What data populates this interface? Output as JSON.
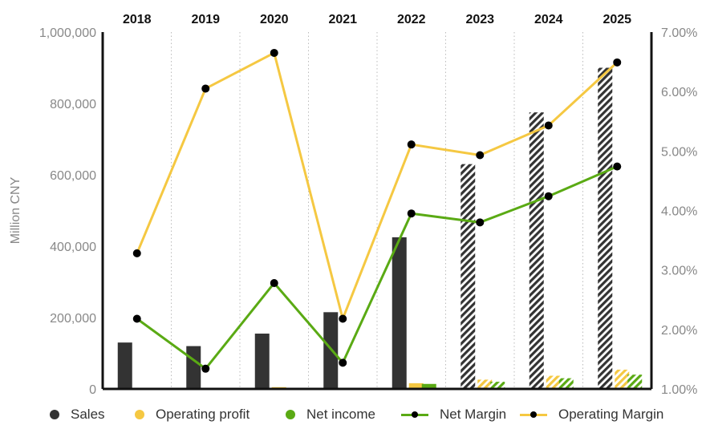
{
  "chart_data": {
    "type": "bar",
    "categories": [
      "2018",
      "2019",
      "2020",
      "2021",
      "2022",
      "2023",
      "2024",
      "2025"
    ],
    "forecast_from": "2023",
    "xlabel": "",
    "ylabel": "Million CNY",
    "ylim": [
      0,
      1000000
    ],
    "y2lim": [
      0.01,
      0.07
    ],
    "y_ticks": [
      "0",
      "200,000",
      "400,000",
      "600,000",
      "800,000",
      "1,000,000"
    ],
    "y2_ticks": [
      "1.00%",
      "2.00%",
      "3.00%",
      "4.00%",
      "5.00%",
      "6.00%",
      "7.00%"
    ],
    "series": [
      {
        "name": "Sales",
        "kind": "bar",
        "axis": "left",
        "color": "#333333",
        "values": [
          130000,
          120000,
          155000,
          215000,
          425000,
          630000,
          775000,
          900000
        ]
      },
      {
        "name": "Operating profit",
        "kind": "bar",
        "axis": "left",
        "color": "#f5c842",
        "values": [
          2000,
          1000,
          5000,
          500,
          16000,
          26000,
          37000,
          54000
        ]
      },
      {
        "name": "Net income",
        "kind": "bar",
        "axis": "left",
        "color": "#5aaa14",
        "values": [
          1500,
          500,
          3000,
          300,
          14000,
          20000,
          30000,
          40000
        ]
      },
      {
        "name": "Net Margin",
        "kind": "line",
        "axis": "right",
        "color": "#5aaa14",
        "values": [
          0.0218,
          0.0134,
          0.0278,
          0.0144,
          0.0395,
          0.038,
          0.0424,
          0.0474
        ]
      },
      {
        "name": "Operating Margin",
        "kind": "line",
        "axis": "right",
        "color": "#f5c842",
        "values": [
          0.0328,
          0.0605,
          0.0665,
          0.0218,
          0.0511,
          0.0493,
          0.0543,
          0.0649
        ]
      }
    ],
    "legend_position": "bottom",
    "grid": "vertical dotted"
  }
}
